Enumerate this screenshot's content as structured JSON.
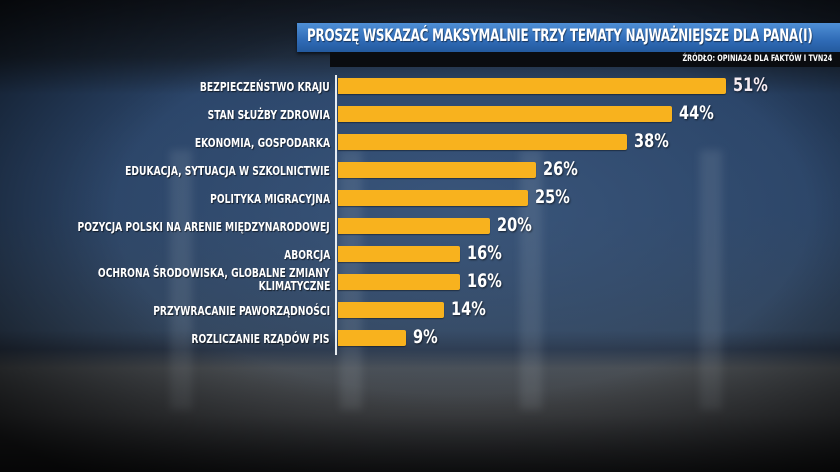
{
  "header": {
    "title": "PROSZĘ WSKAZAĆ MAKSYMALNIE TRZY TEMATY NAJWAŻNIEJSZE DLA PANA(I)",
    "source": "ŹRÓDŁO: OPINIA24 DLA FAKTÓW I TVN24"
  },
  "colors": {
    "bar": "#f8b21e",
    "title_bar": "#2f6bb6",
    "text": "#ffffff"
  },
  "chart_data": {
    "type": "bar",
    "orientation": "horizontal",
    "title": "PROSZĘ WSKAZAĆ MAKSYMALNIE TRZY TEMATY NAJWAŻNIEJSZE DLA PANA(I)",
    "source": "ŹRÓDŁO: OPINIA24 DLA FAKTÓW I TVN24",
    "xlabel": "",
    "ylabel": "",
    "unit": "%",
    "grid": false,
    "legend": null,
    "categories": [
      "BEZPIECZEŃSTWO KRAJU",
      "STAN SŁUŻBY ZDROWIA",
      "EKONOMIA, GOSPODARKA",
      "EDUKACJA, SYTUACJA W SZKOLNICTWIE",
      "POLITYKA MIGRACYJNA",
      "POZYCJA POLSKI NA ARENIE MIĘDZYNARODOWEJ",
      "ABORCJA",
      "OCHRONA ŚRODOWISKA, GLOBALNE ZMIANY KLIMATYCZNE",
      "PRZYWRACANIE PAWORZĄDNOŚCI",
      "ROZLICZANIE RZĄDÓW PIS"
    ],
    "values": [
      51,
      44,
      38,
      26,
      25,
      20,
      16,
      16,
      14,
      9
    ],
    "value_labels": [
      "51%",
      "44%",
      "38%",
      "26%",
      "25%",
      "20%",
      "16%",
      "16%",
      "14%",
      "9%"
    ]
  },
  "rows": [
    {
      "label": "BEZPIECZEŃSTWO KRAJU",
      "value": "51%"
    },
    {
      "label": "STAN SŁUŻBY ZDROWIA",
      "value": "44%"
    },
    {
      "label": "EKONOMIA, GOSPODARKA",
      "value": "38%"
    },
    {
      "label": "EDUKACJA, SYTUACJA W SZKOLNICTWIE",
      "value": "26%"
    },
    {
      "label": "POLITYKA MIGRACYJNA",
      "value": "25%"
    },
    {
      "label": "POZYCJA POLSKI NA ARENIE MIĘDZYNARODOWEJ",
      "value": "20%"
    },
    {
      "label": "ABORCJA",
      "value": "16%"
    },
    {
      "label_line1": "OCHRONA ŚRODOWISKA, GLOBALNE ZMIANY",
      "label_line2": "KLIMATYCZNE",
      "value": "16%"
    },
    {
      "label": "PRZYWRACANIE PAWORZĄDNOŚCI",
      "value": "14%"
    },
    {
      "label": "ROZLICZANIE RZĄDÓW PIS",
      "value": "9%"
    }
  ]
}
